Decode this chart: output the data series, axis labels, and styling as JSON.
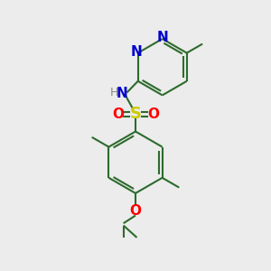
{
  "bg_color": "#ececec",
  "bond_color": "#2d6b2d",
  "bond_width": 1.5,
  "S_color": "#cccc00",
  "O_color": "#ff0000",
  "N_color": "#0000cc",
  "H_color": "#888888",
  "figsize": [
    3.0,
    3.0
  ],
  "dpi": 100,
  "xlim": [
    0,
    10
  ],
  "ylim": [
    0,
    10
  ]
}
